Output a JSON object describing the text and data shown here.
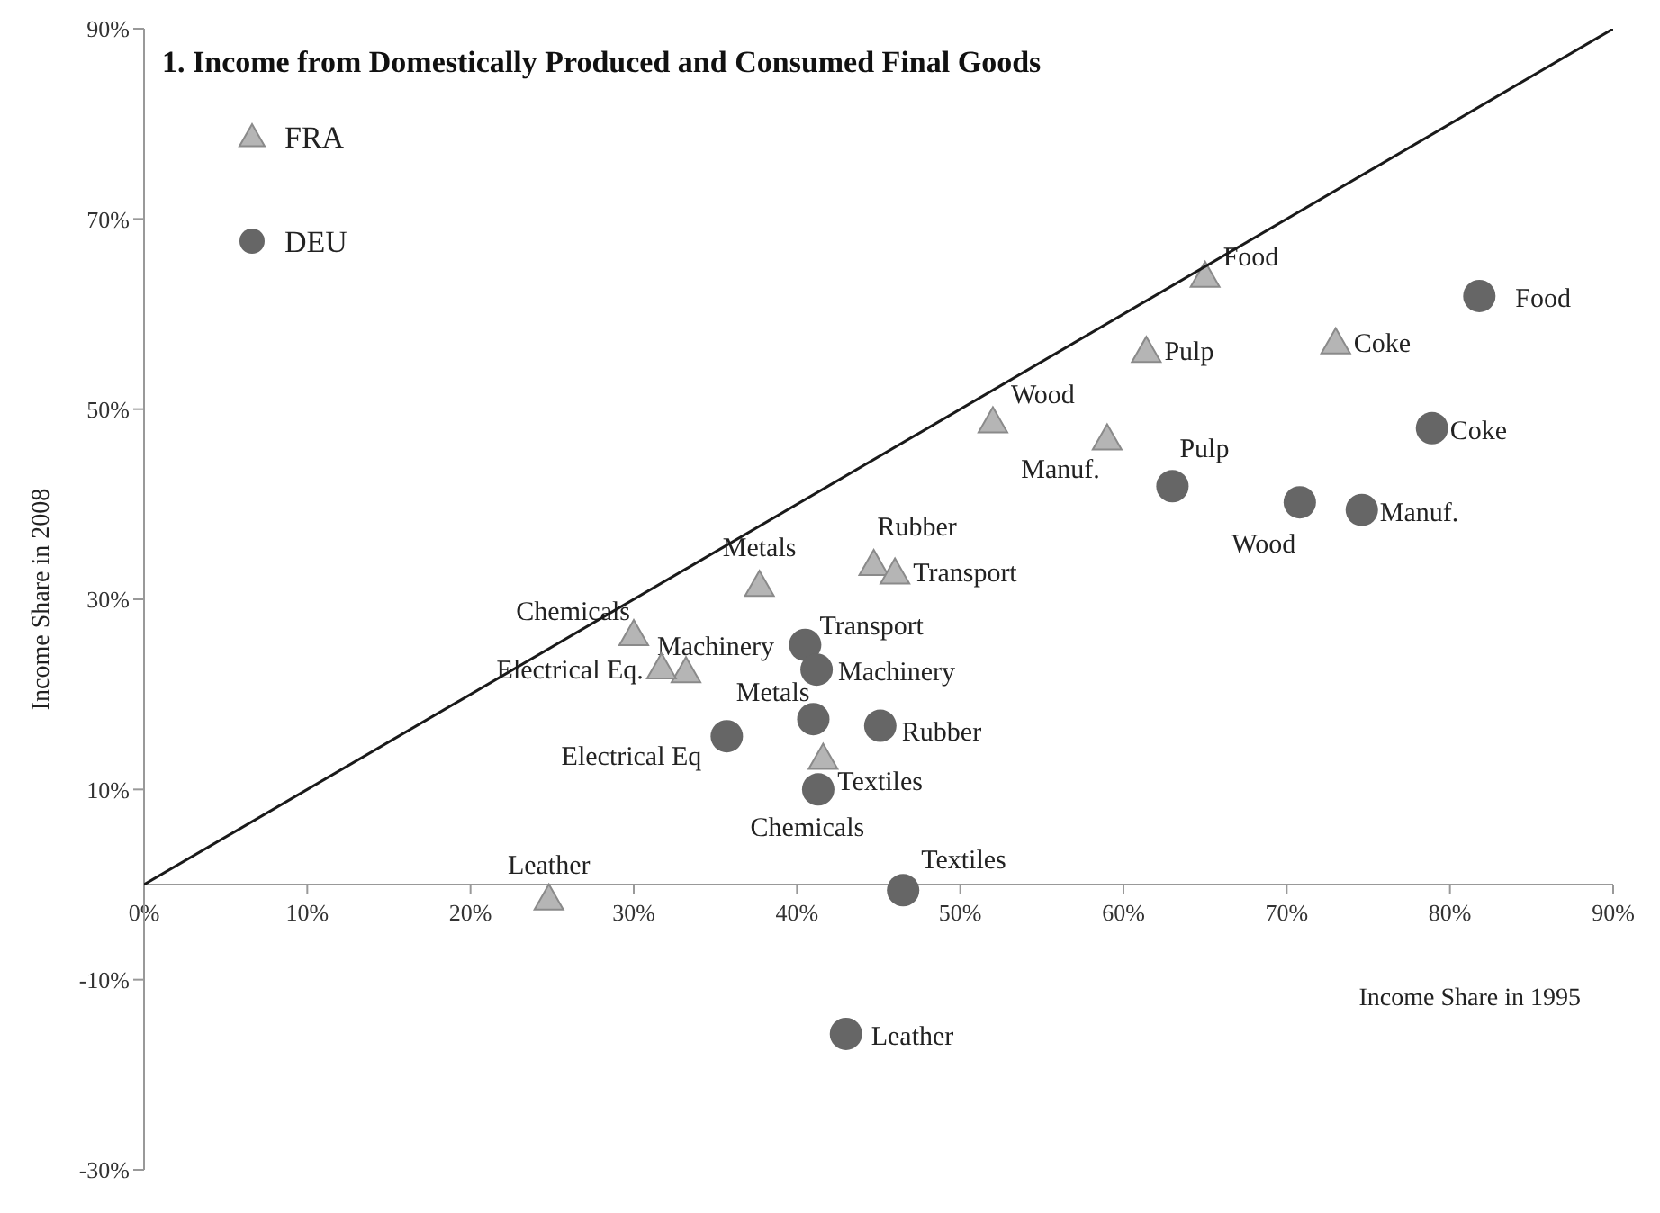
{
  "chart_data": {
    "type": "scatter",
    "title": "1. Income from Domestically Produced and Consumed Final Goods",
    "xlabel": "Income Share in 1995",
    "ylabel": "Income Share in 2008",
    "xlim": [
      0,
      90
    ],
    "xticks": [
      {
        "value": 0,
        "label": "0%"
      },
      {
        "value": 10,
        "label": "10%"
      },
      {
        "value": 20,
        "label": "20%"
      },
      {
        "value": 30,
        "label": "30%"
      },
      {
        "value": 40,
        "label": "40%"
      },
      {
        "value": 50,
        "label": "50%"
      },
      {
        "value": 60,
        "label": "60%"
      },
      {
        "value": 70,
        "label": "70%"
      },
      {
        "value": 80,
        "label": "80%"
      },
      {
        "value": 90,
        "label": "90%"
      }
    ],
    "ylim": [
      -30,
      90
    ],
    "yticks": [
      {
        "value": -30,
        "label": "-30%"
      },
      {
        "value": -10,
        "label": "-10%"
      },
      {
        "value": 10,
        "label": "10%"
      },
      {
        "value": 30,
        "label": "30%"
      },
      {
        "value": 50,
        "label": "50%"
      },
      {
        "value": 70,
        "label": "70%"
      },
      {
        "value": 90,
        "label": "90%"
      }
    ],
    "grid": false,
    "legend": "top left",
    "series": [
      {
        "name": "FRA",
        "color": "#b5b5b5",
        "marker": "triangle",
        "x": [
          65,
          61.4,
          73,
          52,
          59,
          44.7,
          46,
          37.7,
          30,
          33.2,
          31.7,
          41.6,
          24.8
        ],
        "values": [
          64,
          56.1,
          57,
          48.7,
          46.9,
          33.7,
          32.8,
          31.5,
          26.3,
          22.4,
          22.8,
          13.3,
          -1.5
        ]
      },
      {
        "name": "DEU",
        "color": "#666666",
        "marker": "circle",
        "x": [
          81.8,
          78.9,
          63,
          70.8,
          74.6,
          40.5,
          41.2,
          41,
          45.1,
          35.7,
          41.3,
          46.5,
          43
        ],
        "values": [
          61.9,
          48,
          41.9,
          40.2,
          39.4,
          25.2,
          22.6,
          17.4,
          16.7,
          15.6,
          10,
          -0.6,
          -15.7
        ]
      },
      {
        "type": "line",
        "color": "#1a1a1a",
        "marker": "none",
        "x": [
          0,
          90
        ],
        "values": [
          0,
          90
        ]
      }
    ],
    "annotations": [
      {
        "text": "Food",
        "x": 65,
        "y": 64
      },
      {
        "text": "Pulp",
        "x": 61.4,
        "y": 56.1
      },
      {
        "text": "Coke",
        "x": 73,
        "y": 57
      },
      {
        "text": "Wood",
        "x": 52,
        "y": 48.7
      },
      {
        "text": "Manuf.",
        "x": 59,
        "y": 46.9
      },
      {
        "text": "Rubber",
        "x": 44.7,
        "y": 33.7
      },
      {
        "text": "Transport",
        "x": 46,
        "y": 32.8
      },
      {
        "text": "Metals",
        "x": 37.7,
        "y": 31.5
      },
      {
        "text": "Chemicals",
        "x": 30,
        "y": 26.3
      },
      {
        "text": "Machinery",
        "x": 33.2,
        "y": 22.4
      },
      {
        "text": "Electrical Eq.",
        "x": 31.7,
        "y": 22.8
      },
      {
        "text": "Textiles",
        "x": 41.6,
        "y": 13.3
      },
      {
        "text": "Leather",
        "x": 24.8,
        "y": -1.5
      },
      {
        "text": "Food",
        "x": 81.8,
        "y": 61.9
      },
      {
        "text": "Coke",
        "x": 78.9,
        "y": 48
      },
      {
        "text": "Pulp",
        "x": 63,
        "y": 41.9
      },
      {
        "text": "Wood",
        "x": 70.8,
        "y": 40.2
      },
      {
        "text": "Manuf.",
        "x": 74.6,
        "y": 39.4
      },
      {
        "text": "Transport",
        "x": 40.5,
        "y": 25.2
      },
      {
        "text": "Machinery",
        "x": 41.2,
        "y": 22.6
      },
      {
        "text": "Metals",
        "x": 41,
        "y": 17.4
      },
      {
        "text": "Rubber",
        "x": 45.1,
        "y": 16.7
      },
      {
        "text": "Electrical Eq",
        "x": 35.7,
        "y": 15.6
      },
      {
        "text": "Chemicals",
        "x": 41.3,
        "y": 10
      },
      {
        "text": "Textiles",
        "x": 46.5,
        "y": -0.6
      },
      {
        "text": "Leather",
        "x": 43,
        "y": -15.7
      }
    ]
  }
}
